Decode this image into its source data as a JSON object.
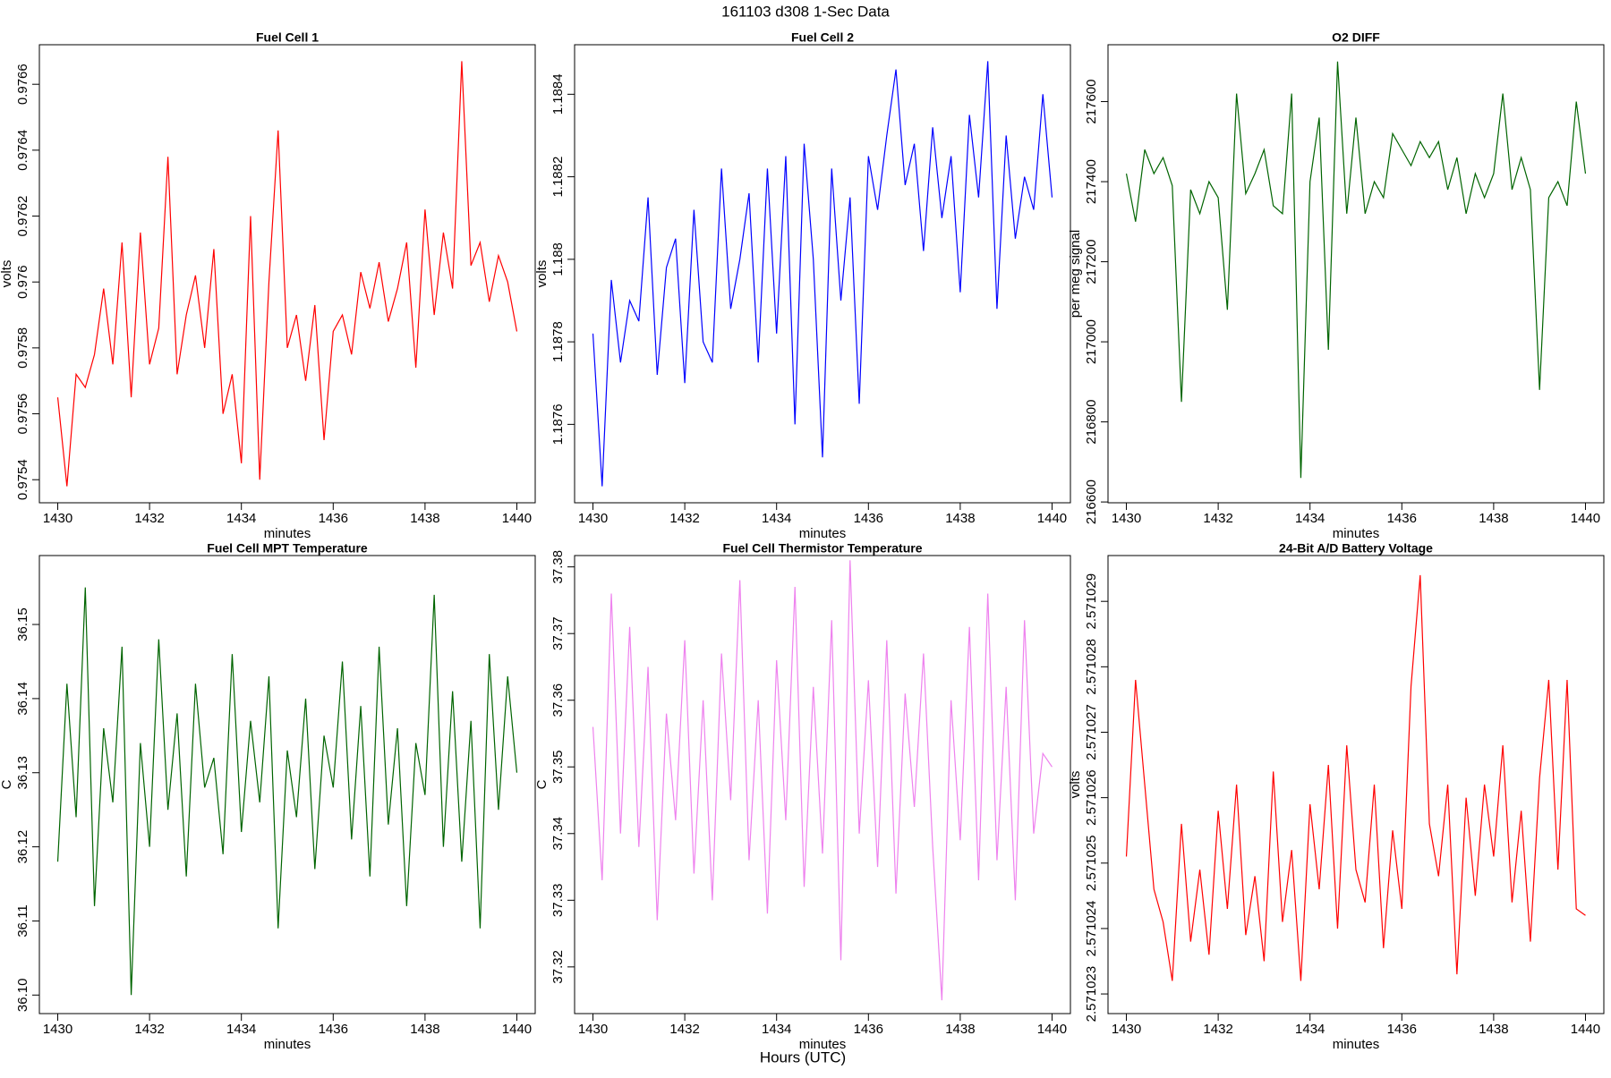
{
  "title": "161103   d308   1-Sec Data",
  "x_label": "Hours (UTC)",
  "chart_data": [
    {
      "type": "line",
      "title": "Fuel Cell 1",
      "xlabel": "minutes",
      "ylabel": "volts",
      "xlim": [
        1429.6,
        1440.4
      ],
      "xticks": [
        1430,
        1432,
        1434,
        1436,
        1438,
        1440
      ],
      "ylim": [
        0.97533,
        0.97672
      ],
      "yticks": [
        0.9754,
        0.9756,
        0.9758,
        0.976,
        0.9762,
        0.9764,
        0.9766
      ],
      "x": [
        1430,
        1430.2,
        1430.4,
        1430.6,
        1430.8,
        1431,
        1431.2,
        1431.4,
        1431.6,
        1431.8,
        1432,
        1432.2,
        1432.4,
        1432.6,
        1432.8,
        1433,
        1433.2,
        1433.4,
        1433.6,
        1433.8,
        1434,
        1434.2,
        1434.4,
        1434.6,
        1434.8,
        1435,
        1435.2,
        1435.4,
        1435.6,
        1435.8,
        1436,
        1436.2,
        1436.4,
        1436.6,
        1436.8,
        1437,
        1437.2,
        1437.4,
        1437.6,
        1437.8,
        1438,
        1438.2,
        1438.4,
        1438.6,
        1438.8,
        1439,
        1439.2,
        1439.4,
        1439.6,
        1439.8,
        1440
      ],
      "series": [
        {
          "color": "#ff0000",
          "values": [
            0.97565,
            0.97538,
            0.97572,
            0.97568,
            0.97578,
            0.97598,
            0.97575,
            0.97612,
            0.97565,
            0.97615,
            0.97575,
            0.97586,
            0.97638,
            0.97572,
            0.9759,
            0.97602,
            0.9758,
            0.9761,
            0.9756,
            0.97572,
            0.97545,
            0.9762,
            0.9754,
            0.976,
            0.97646,
            0.9758,
            0.9759,
            0.9757,
            0.97593,
            0.97552,
            0.97585,
            0.9759,
            0.97578,
            0.97603,
            0.97592,
            0.97606,
            0.97588,
            0.97598,
            0.97612,
            0.97574,
            0.97622,
            0.9759,
            0.97615,
            0.97598,
            0.97667,
            0.97605,
            0.97612,
            0.97594,
            0.97608,
            0.976,
            0.97585
          ]
        }
      ]
    },
    {
      "type": "line",
      "title": "Fuel Cell 2",
      "xlabel": "minutes",
      "ylabel": "volts",
      "xlim": [
        1429.6,
        1440.4
      ],
      "xticks": [
        1430,
        1432,
        1434,
        1436,
        1438,
        1440
      ],
      "ylim": [
        1.18741,
        1.18852
      ],
      "yticks": [
        1.1876,
        1.1878,
        1.188,
        1.1882,
        1.1884
      ],
      "x": [
        1430,
        1430.2,
        1430.4,
        1430.6,
        1430.8,
        1431,
        1431.2,
        1431.4,
        1431.6,
        1431.8,
        1432,
        1432.2,
        1432.4,
        1432.6,
        1432.8,
        1433,
        1433.2,
        1433.4,
        1433.6,
        1433.8,
        1434,
        1434.2,
        1434.4,
        1434.6,
        1434.8,
        1435,
        1435.2,
        1435.4,
        1435.6,
        1435.8,
        1436,
        1436.2,
        1436.4,
        1436.6,
        1436.8,
        1437,
        1437.2,
        1437.4,
        1437.6,
        1437.8,
        1438,
        1438.2,
        1438.4,
        1438.6,
        1438.8,
        1439,
        1439.2,
        1439.4,
        1439.6,
        1439.8,
        1440
      ],
      "series": [
        {
          "color": "#0000ff",
          "values": [
            1.18782,
            1.18745,
            1.18795,
            1.18775,
            1.1879,
            1.18785,
            1.18815,
            1.18772,
            1.18798,
            1.18805,
            1.1877,
            1.18812,
            1.1878,
            1.18775,
            1.18822,
            1.18788,
            1.188,
            1.18816,
            1.18775,
            1.18822,
            1.18782,
            1.18825,
            1.1876,
            1.18828,
            1.188,
            1.18752,
            1.18822,
            1.1879,
            1.18815,
            1.18765,
            1.18825,
            1.18812,
            1.1883,
            1.18846,
            1.18818,
            1.18828,
            1.18802,
            1.18832,
            1.1881,
            1.18825,
            1.18792,
            1.18835,
            1.18815,
            1.18848,
            1.18788,
            1.1883,
            1.18805,
            1.1882,
            1.18812,
            1.1884,
            1.18815
          ]
        }
      ]
    },
    {
      "type": "line",
      "title": "O2 DIFF",
      "xlabel": "minutes",
      "ylabel": "per meg signal",
      "xlim": [
        1429.6,
        1440.4
      ],
      "xticks": [
        1430,
        1432,
        1434,
        1436,
        1438,
        1440
      ],
      "ylim": [
        216598,
        217742
      ],
      "yticks": [
        216600,
        216800,
        217000,
        217200,
        217400,
        217600
      ],
      "x": [
        1430,
        1430.2,
        1430.4,
        1430.6,
        1430.8,
        1431,
        1431.2,
        1431.4,
        1431.6,
        1431.8,
        1432,
        1432.2,
        1432.4,
        1432.6,
        1432.8,
        1433,
        1433.2,
        1433.4,
        1433.6,
        1433.8,
        1434,
        1434.2,
        1434.4,
        1434.6,
        1434.8,
        1435,
        1435.2,
        1435.4,
        1435.6,
        1435.8,
        1436,
        1436.2,
        1436.4,
        1436.6,
        1436.8,
        1437,
        1437.2,
        1437.4,
        1437.6,
        1437.8,
        1438,
        1438.2,
        1438.4,
        1438.6,
        1438.8,
        1439,
        1439.2,
        1439.4,
        1439.6,
        1439.8,
        1440
      ],
      "series": [
        {
          "color": "#006400",
          "values": [
            217420,
            217300,
            217480,
            217420,
            217460,
            217390,
            216850,
            217380,
            217320,
            217400,
            217360,
            217080,
            217620,
            217370,
            217420,
            217480,
            217340,
            217320,
            217620,
            216660,
            217400,
            217560,
            216980,
            217700,
            217320,
            217560,
            217320,
            217400,
            217360,
            217520,
            217480,
            217440,
            217500,
            217460,
            217500,
            217380,
            217460,
            217320,
            217420,
            217360,
            217420,
            217620,
            217380,
            217460,
            217380,
            216880,
            217360,
            217400,
            217340,
            217600,
            217420
          ]
        }
      ]
    },
    {
      "type": "line",
      "title": "Fuel Cell MPT Temperature",
      "xlabel": "minutes",
      "ylabel": "C",
      "xlim": [
        1429.6,
        1440.4
      ],
      "xticks": [
        1430,
        1432,
        1434,
        1436,
        1438,
        1440
      ],
      "ylim": [
        36.0975,
        36.1593
      ],
      "yticks": [
        {
          "value": 36.1,
          "label": "36.10"
        },
        36.11,
        36.12,
        36.13,
        36.14,
        36.15
      ],
      "x": [
        1430,
        1430.2,
        1430.4,
        1430.6,
        1430.8,
        1431,
        1431.2,
        1431.4,
        1431.6,
        1431.8,
        1432,
        1432.2,
        1432.4,
        1432.6,
        1432.8,
        1433,
        1433.2,
        1433.4,
        1433.6,
        1433.8,
        1434,
        1434.2,
        1434.4,
        1434.6,
        1434.8,
        1435,
        1435.2,
        1435.4,
        1435.6,
        1435.8,
        1436,
        1436.2,
        1436.4,
        1436.6,
        1436.8,
        1437,
        1437.2,
        1437.4,
        1437.6,
        1437.8,
        1438,
        1438.2,
        1438.4,
        1438.6,
        1438.8,
        1439,
        1439.2,
        1439.4,
        1439.6,
        1439.8,
        1440
      ],
      "series": [
        {
          "color": "#006400",
          "values": [
            36.118,
            36.142,
            36.124,
            36.155,
            36.112,
            36.136,
            36.126,
            36.147,
            36.1,
            36.134,
            36.12,
            36.148,
            36.125,
            36.138,
            36.116,
            36.142,
            36.128,
            36.132,
            36.119,
            36.146,
            36.122,
            36.137,
            36.126,
            36.143,
            36.109,
            36.133,
            36.124,
            36.14,
            36.117,
            36.135,
            36.128,
            36.145,
            36.121,
            36.139,
            36.116,
            36.147,
            36.123,
            36.136,
            36.112,
            36.134,
            36.127,
            36.154,
            36.12,
            36.141,
            36.118,
            36.137,
            36.109,
            36.146,
            36.125,
            36.143,
            36.13
          ]
        }
      ]
    },
    {
      "type": "line",
      "title": "Fuel Cell Thermistor Temperature",
      "xlabel": "minutes",
      "ylabel": "C",
      "xlim": [
        1429.6,
        1440.4
      ],
      "xticks": [
        1430,
        1432,
        1434,
        1436,
        1438,
        1440
      ],
      "ylim": [
        37.313,
        37.3817
      ],
      "yticks": [
        37.32,
        37.33,
        37.34,
        37.35,
        37.36,
        37.37,
        37.38
      ],
      "x": [
        1430,
        1430.2,
        1430.4,
        1430.6,
        1430.8,
        1431,
        1431.2,
        1431.4,
        1431.6,
        1431.8,
        1432,
        1432.2,
        1432.4,
        1432.6,
        1432.8,
        1433,
        1433.2,
        1433.4,
        1433.6,
        1433.8,
        1434,
        1434.2,
        1434.4,
        1434.6,
        1434.8,
        1435,
        1435.2,
        1435.4,
        1435.6,
        1435.8,
        1436,
        1436.2,
        1436.4,
        1436.6,
        1436.8,
        1437,
        1437.2,
        1437.4,
        1437.6,
        1437.8,
        1438,
        1438.2,
        1438.4,
        1438.6,
        1438.8,
        1439,
        1439.2,
        1439.4,
        1439.6,
        1439.8,
        1440
      ],
      "series": [
        {
          "color": "#ee82ee",
          "values": [
            37.356,
            37.333,
            37.376,
            37.34,
            37.371,
            37.338,
            37.365,
            37.327,
            37.358,
            37.342,
            37.369,
            37.334,
            37.36,
            37.33,
            37.367,
            37.345,
            37.378,
            37.336,
            37.36,
            37.328,
            37.366,
            37.342,
            37.377,
            37.332,
            37.362,
            37.337,
            37.372,
            37.321,
            37.381,
            37.34,
            37.363,
            37.335,
            37.369,
            37.331,
            37.361,
            37.344,
            37.367,
            37.338,
            37.315,
            37.36,
            37.339,
            37.371,
            37.333,
            37.376,
            37.336,
            37.362,
            37.33,
            37.372,
            37.34,
            37.352,
            37.35
          ]
        }
      ]
    },
    {
      "type": "line",
      "title": "24-Bit A/D Battery Voltage",
      "xlabel": "minutes",
      "ylabel": "volts",
      "xlim": [
        1429.6,
        1440.4
      ],
      "xticks": [
        1430,
        1432,
        1434,
        1436,
        1438,
        1440
      ],
      "ylim": [
        2.5710227,
        2.5710297
      ],
      "yticks": [
        2.571023,
        2.571024,
        2.571025,
        2.571026,
        2.571027,
        2.571028,
        2.571029
      ],
      "x": [
        1430,
        1430.2,
        1430.4,
        1430.6,
        1430.8,
        1431,
        1431.2,
        1431.4,
        1431.6,
        1431.8,
        1432,
        1432.2,
        1432.4,
        1432.6,
        1432.8,
        1433,
        1433.2,
        1433.4,
        1433.6,
        1433.8,
        1434,
        1434.2,
        1434.4,
        1434.6,
        1434.8,
        1435,
        1435.2,
        1435.4,
        1435.6,
        1435.8,
        1436,
        1436.2,
        1436.4,
        1436.6,
        1436.8,
        1437,
        1437.2,
        1437.4,
        1437.6,
        1437.8,
        1438,
        1438.2,
        1438.4,
        1438.6,
        1438.8,
        1439,
        1439.2,
        1439.4,
        1439.6,
        1439.8,
        1440
      ],
      "series": [
        {
          "color": "#ff0000",
          "values": [
            2.5710251,
            2.5710278,
            2.5710262,
            2.5710246,
            2.5710241,
            2.5710232,
            2.5710256,
            2.5710238,
            2.5710249,
            2.5710236,
            2.5710258,
            2.5710243,
            2.5710262,
            2.5710239,
            2.5710248,
            2.5710235,
            2.5710264,
            2.5710241,
            2.5710252,
            2.5710232,
            2.5710259,
            2.5710246,
            2.5710265,
            2.571024,
            2.5710268,
            2.5710249,
            2.5710244,
            2.5710262,
            2.5710237,
            2.5710255,
            2.5710243,
            2.5710277,
            2.5710294,
            2.5710256,
            2.5710248,
            2.5710262,
            2.5710233,
            2.571026,
            2.5710245,
            2.5710262,
            2.5710251,
            2.5710268,
            2.5710244,
            2.5710258,
            2.5710238,
            2.5710263,
            2.5710278,
            2.5710249,
            2.5710278,
            2.5710243,
            2.5710242
          ]
        }
      ]
    }
  ]
}
